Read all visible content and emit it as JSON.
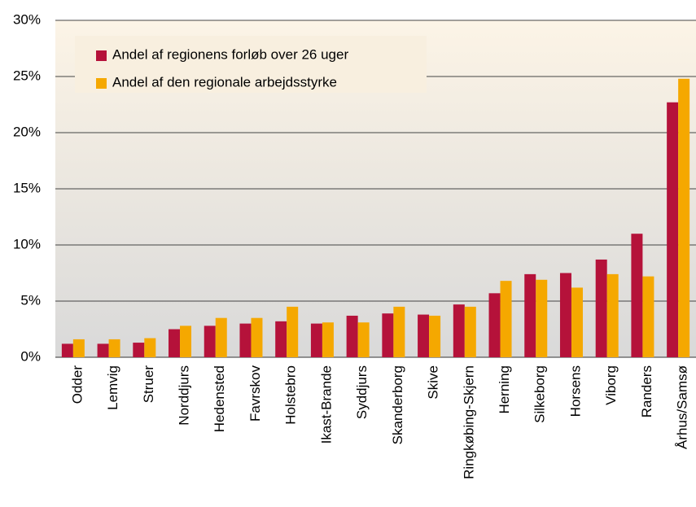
{
  "chart_data": {
    "type": "bar",
    "categories": [
      "Odder",
      "Lemvig",
      "Struer",
      "Norddjurs",
      "Hedensted",
      "Favrskov",
      "Holstebro",
      "Ikast-Brande",
      "Syddjurs",
      "Skanderborg",
      "Skive",
      "Ringkøbing-Skjern",
      "Herning",
      "Silkeborg",
      "Horsens",
      "Viborg",
      "Randers",
      "Århus/Samsø"
    ],
    "series": [
      {
        "name": "Andel af regionens forløb over 26 uger",
        "color": "#b5123a",
        "values": [
          1.2,
          1.2,
          1.3,
          2.5,
          2.8,
          3.0,
          3.2,
          3.0,
          3.7,
          3.9,
          3.8,
          4.7,
          5.7,
          7.4,
          7.5,
          8.7,
          11.0,
          22.7
        ]
      },
      {
        "name": "Andel af den regionale arbejdsstyrke",
        "color": "#f5a800",
        "values": [
          1.6,
          1.6,
          1.7,
          2.8,
          3.5,
          3.5,
          4.5,
          3.1,
          3.1,
          4.5,
          3.7,
          4.5,
          6.8,
          6.9,
          6.2,
          7.4,
          7.2,
          24.8
        ]
      }
    ],
    "ylim": [
      0,
      30
    ],
    "yticks": [
      {
        "value": 0,
        "label": "0%"
      },
      {
        "value": 5,
        "label": "5%"
      },
      {
        "value": 10,
        "label": "10%"
      },
      {
        "value": 15,
        "label": "15%"
      },
      {
        "value": 20,
        "label": "20%"
      },
      {
        "value": 25,
        "label": "25%"
      },
      {
        "value": 30,
        "label": "30%"
      }
    ],
    "grid": true,
    "legend": "upper left"
  }
}
